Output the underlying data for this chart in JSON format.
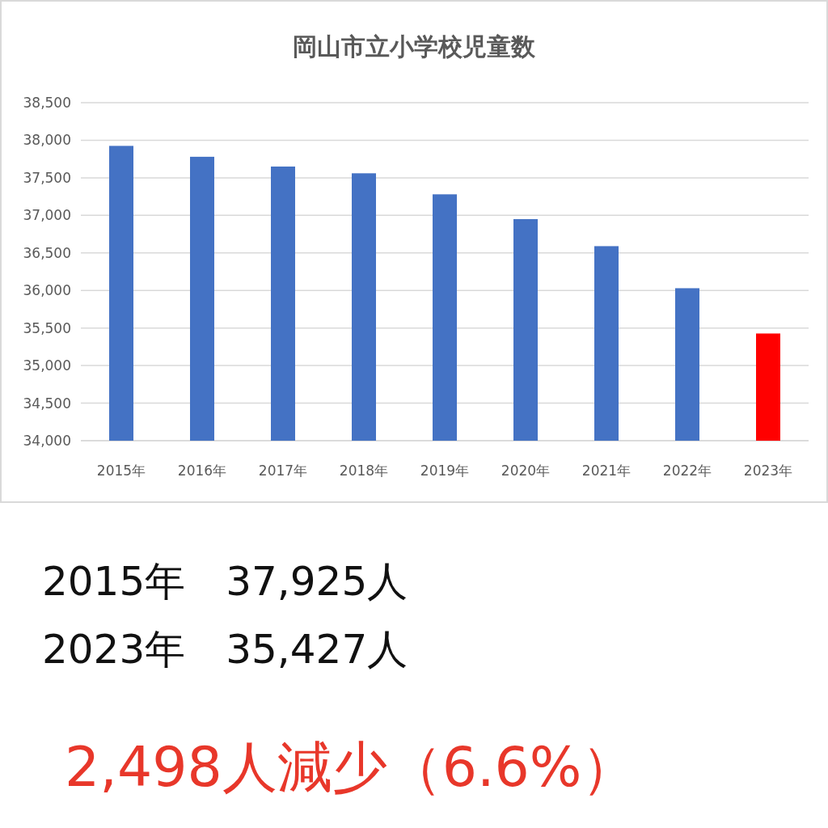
{
  "chart_data": {
    "type": "bar",
    "title": "岡山市立小学校児童数",
    "categories": [
      "2015年",
      "2016年",
      "2017年",
      "2018年",
      "2019年",
      "2020年",
      "2021年",
      "2022年",
      "2023年"
    ],
    "values": [
      37925,
      37780,
      37650,
      37560,
      37280,
      36950,
      36590,
      36030,
      35427
    ],
    "colors": [
      "#4472c4",
      "#4472c4",
      "#4472c4",
      "#4472c4",
      "#4472c4",
      "#4472c4",
      "#4472c4",
      "#4472c4",
      "#ff0000"
    ],
    "ylim": [
      34000,
      38500
    ],
    "yticks": [
      {
        "value": 34000,
        "label": "34,000"
      },
      {
        "value": 34500,
        "label": "34,500"
      },
      {
        "value": 35000,
        "label": "35,000"
      },
      {
        "value": 35500,
        "label": "35,500"
      },
      {
        "value": 36000,
        "label": "36,000"
      },
      {
        "value": 36500,
        "label": "36,500"
      },
      {
        "value": 37000,
        "label": "37,000"
      },
      {
        "value": 37500,
        "label": "37,500"
      },
      {
        "value": 38000,
        "label": "38,000"
      },
      {
        "value": 38500,
        "label": "38,500"
      }
    ],
    "grid": "y",
    "annotations": [
      "2015年　37,925人",
      "2023年　35,427人",
      "2,498人減少（6.6%）"
    ]
  }
}
